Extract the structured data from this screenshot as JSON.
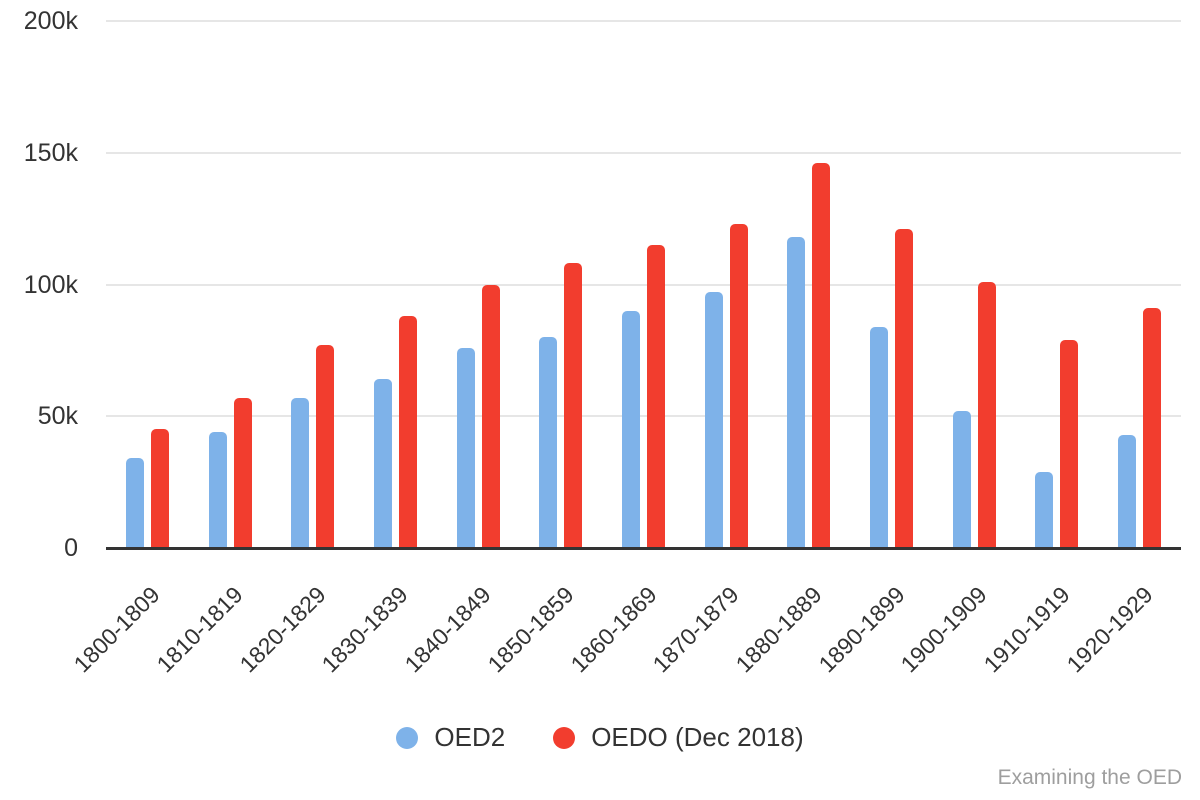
{
  "chart_data": {
    "type": "bar",
    "categories": [
      "1800-1809",
      "1810-1819",
      "1820-1829",
      "1830-1839",
      "1840-1849",
      "1850-1859",
      "1860-1869",
      "1870-1879",
      "1880-1889",
      "1890-1899",
      "1900-1909",
      "1910-1919",
      "1920-1929"
    ],
    "series": [
      {
        "name": "OED2",
        "color": "#7EB2E9",
        "values": [
          34000,
          44000,
          57000,
          64000,
          76000,
          80000,
          90000,
          97000,
          118000,
          84000,
          52000,
          29000,
          43000
        ]
      },
      {
        "name": "OEDO (Dec 2018)",
        "color": "#F23D2E",
        "values": [
          45000,
          57000,
          77000,
          88000,
          100000,
          108000,
          115000,
          123000,
          146000,
          121000,
          101000,
          79000,
          91000
        ]
      }
    ],
    "title": "",
    "xlabel": "",
    "ylabel": "",
    "ylim": [
      0,
      200000
    ],
    "yticks": [
      {
        "value": 0,
        "label": "0"
      },
      {
        "value": 50000,
        "label": "50k"
      },
      {
        "value": 100000,
        "label": "100k"
      },
      {
        "value": 150000,
        "label": "150k"
      },
      {
        "value": 200000,
        "label": "200k"
      }
    ],
    "grid": true,
    "legend_position": "bottom"
  },
  "watermark": "Examining the OED",
  "colors": {
    "background": "#ffffff",
    "gridline": "#e6e6e6",
    "axis_line": "#333333",
    "text": "#333333",
    "watermark_text": "#9e9e9e"
  }
}
